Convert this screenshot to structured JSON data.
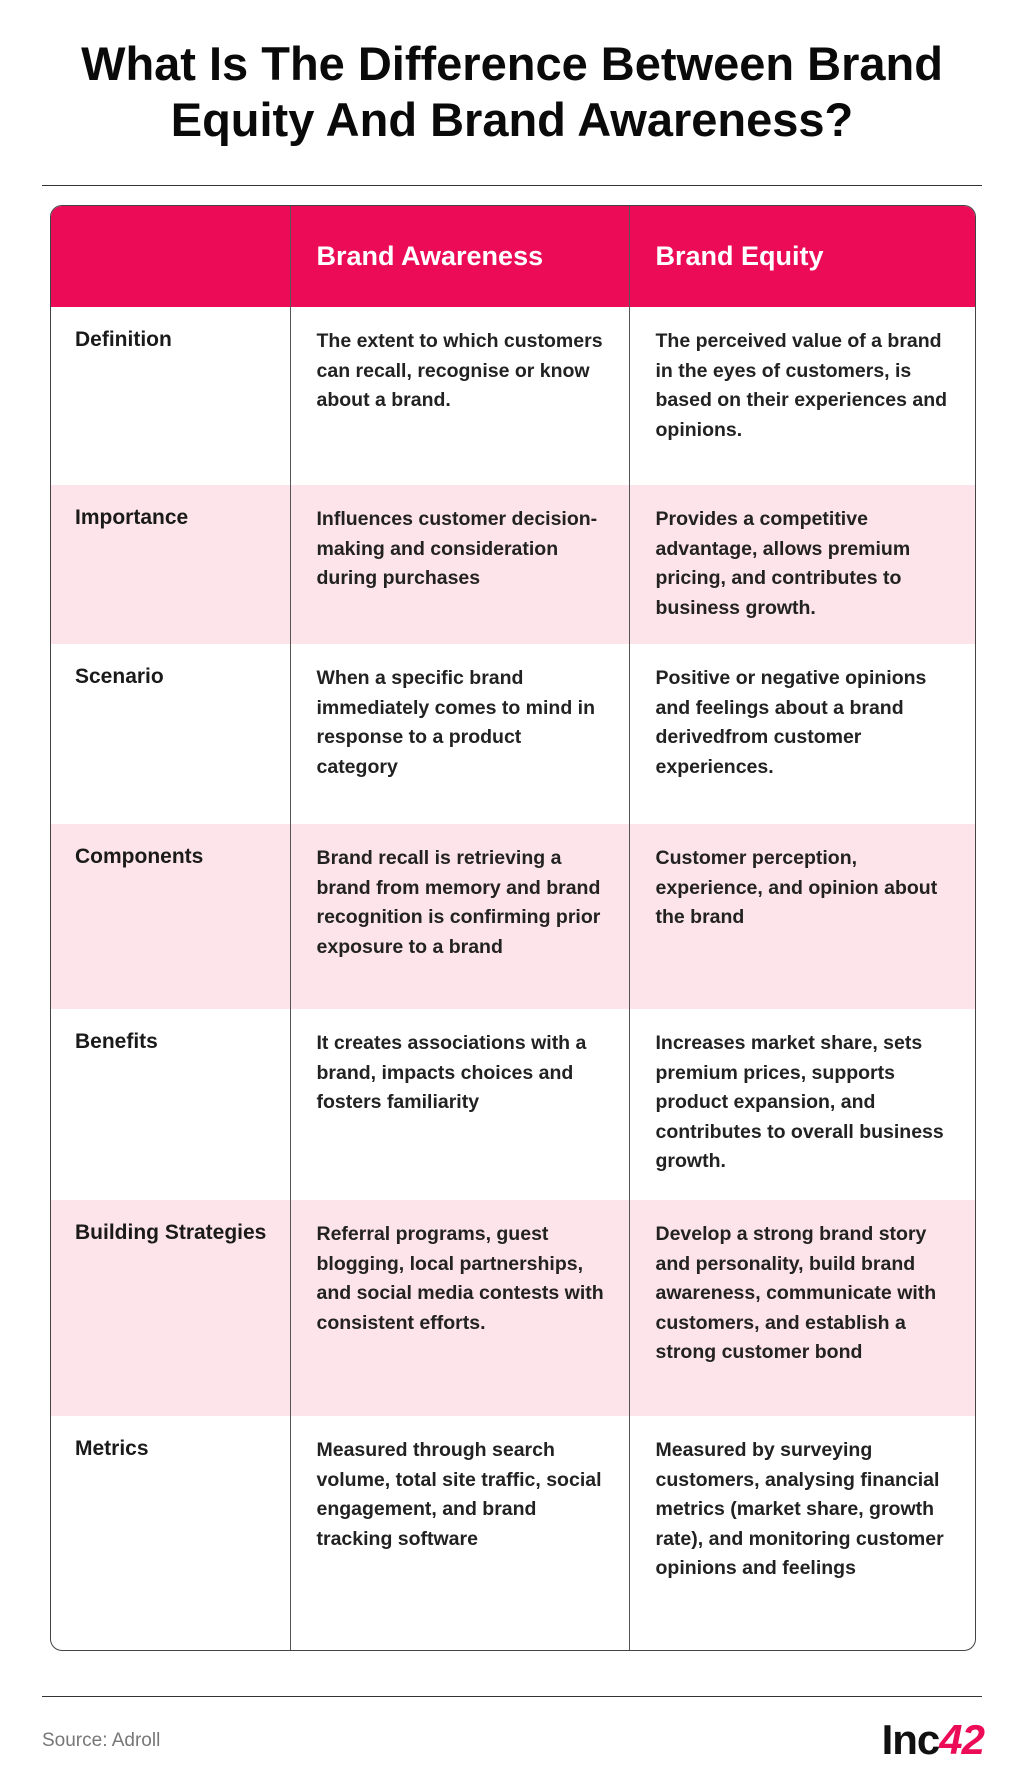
{
  "title": "What Is The Difference Between Brand Equity And Brand Awareness?",
  "table": {
    "header": [
      "Brand Awareness",
      "Brand Equity"
    ],
    "rows": [
      [
        "Definition",
        "The extent to which customers can recall, recognise or know about a brand.",
        "The perceived value of a brand in the eyes of customers, is based on their experiences and opinions."
      ],
      [
        "Importance",
        "Influences customer decision-making and consideration during purchases",
        "Provides a competitive advantage, allows premium pricing, and contributes to business growth."
      ],
      [
        "Scenario",
        "When a specific brand immediately comes to mind in response to a product category",
        "Positive or negative opinions and feelings about a brand derivedfrom customer experiences."
      ],
      [
        "Components",
        "Brand recall is retrieving a brand from memory and brand recognition is confirming prior exposure to a brand",
        "Customer perception, experience, and opinion about the brand"
      ],
      [
        "Benefits",
        "It creates associations with a brand, impacts choices and fosters familiarity",
        "Increases market share, sets premium prices, supports product expansion, and contributes to overall business growth."
      ],
      [
        "Building Strategies",
        "Referral programs, guest blogging, local partnerships, and social media contests with consistent efforts.",
        "Develop a strong brand story and personality, build brand awareness, communicate with customers, and establish a strong customer bond"
      ],
      [
        "Metrics",
        "Measured through search volume, total site traffic, social engagement, and brand tracking software",
        "Measured by surveying customers, analysing financial metrics (market share, growth rate), and monitoring customer opinions and feelings"
      ]
    ]
  },
  "source": "Source: Adroll",
  "logo": {
    "text": "Inc",
    "accent": "42"
  }
}
